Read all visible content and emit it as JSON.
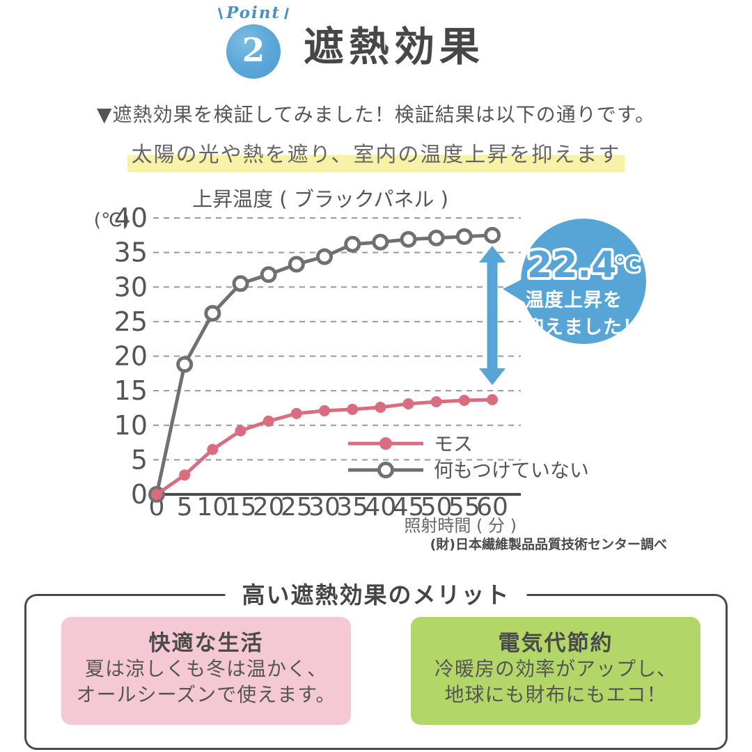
{
  "header": {
    "point_label": "Point",
    "point_number": "2",
    "title": "遮熱効果"
  },
  "intro_text": "▼遮熱効果を検証してみました！検証結果は以下の通りです。",
  "highlight_text": "太陽の光や熱を遮り、室内の温度上昇を抑えます",
  "chart_data": {
    "type": "line",
    "title": "上昇温度 ( ブラックパネル )",
    "y_unit_label": "(℃)",
    "xlabel": "照射時間 ( 分 )",
    "ylabel": "",
    "x": [
      0,
      5,
      10,
      15,
      20,
      25,
      30,
      35,
      40,
      45,
      50,
      55,
      60
    ],
    "ylim": [
      0,
      40
    ],
    "y_tick_step": 5,
    "grid": true,
    "legend_position": "lower-right",
    "series": [
      {
        "name": "モス",
        "color": "#d96c7e",
        "marker": "filled",
        "values": [
          0,
          2.8,
          6.5,
          9.2,
          10.6,
          11.7,
          12.1,
          12.3,
          12.6,
          13.1,
          13.4,
          13.6,
          13.7
        ]
      },
      {
        "name": "何もつけていない",
        "color": "#707070",
        "marker": "open",
        "values": [
          0,
          18.8,
          26.2,
          30.5,
          31.8,
          33.3,
          34.4,
          36.2,
          36.5,
          36.9,
          37.1,
          37.3,
          37.5
        ]
      }
    ],
    "source": "(財)日本繊維製品品質技術センター調べ"
  },
  "annotation": {
    "delta_value": "22.4",
    "delta_unit": "℃",
    "lines": [
      "温度上昇を",
      "抑えました！"
    ],
    "arrow_color": "#56a5d6"
  },
  "merits": {
    "title": "高い遮熱効果のメリット",
    "cards": [
      {
        "title": "快適な生活",
        "lines": [
          "夏は涼しくも冬は温かく、",
          "オールシーズンで使えます。"
        ],
        "bg": "#f4c9d5"
      },
      {
        "title": "電気代節約",
        "lines": [
          "冷暖房の効率がアップし、",
          "地球にも財布にもエコ！"
        ],
        "bg": "#b3d669"
      }
    ]
  },
  "colors": {
    "accent_blue": "#56a5d6",
    "highlight_yellow": "#f8f2a6",
    "moss_pink": "#d96c7e",
    "bare_gray": "#707070",
    "card_pink": "#f4c9d5",
    "card_green": "#b3d669",
    "text_dark": "#4a4a4a"
  }
}
